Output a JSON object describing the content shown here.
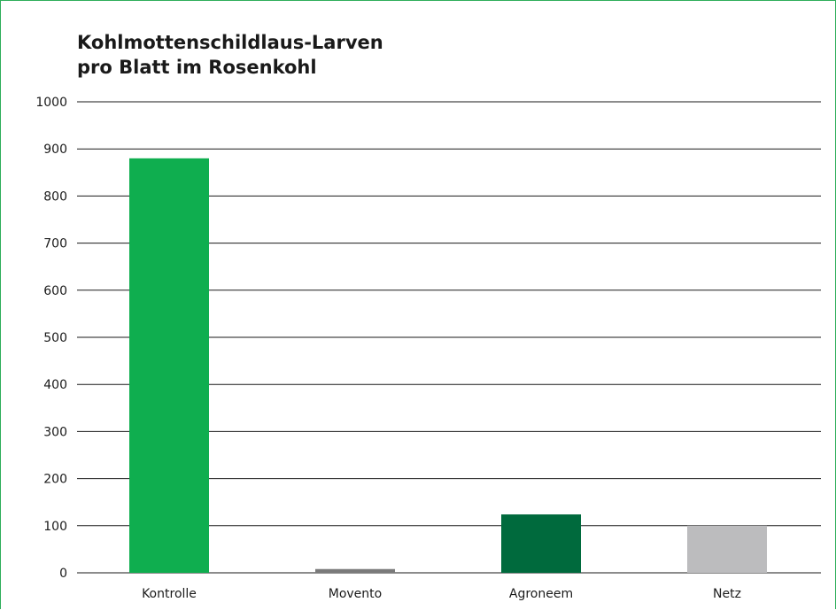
{
  "chart_data": {
    "type": "bar",
    "title_lines": [
      "Kohlmottenschildlaus-Larven",
      "pro Blatt im Rosenkohl"
    ],
    "categories": [
      "Kontrolle",
      "Movento",
      "Agroneem",
      "Netz"
    ],
    "values": [
      880,
      8,
      124,
      100
    ],
    "colors": [
      "#0fae4f",
      "#7a7a7a",
      "#006a3d",
      "#bcbcbe"
    ],
    "ylim": [
      0,
      1000
    ],
    "yticks": [
      0,
      100,
      200,
      300,
      400,
      500,
      600,
      700,
      800,
      900,
      1000
    ],
    "grid": true,
    "xlabel": "",
    "ylabel": ""
  }
}
